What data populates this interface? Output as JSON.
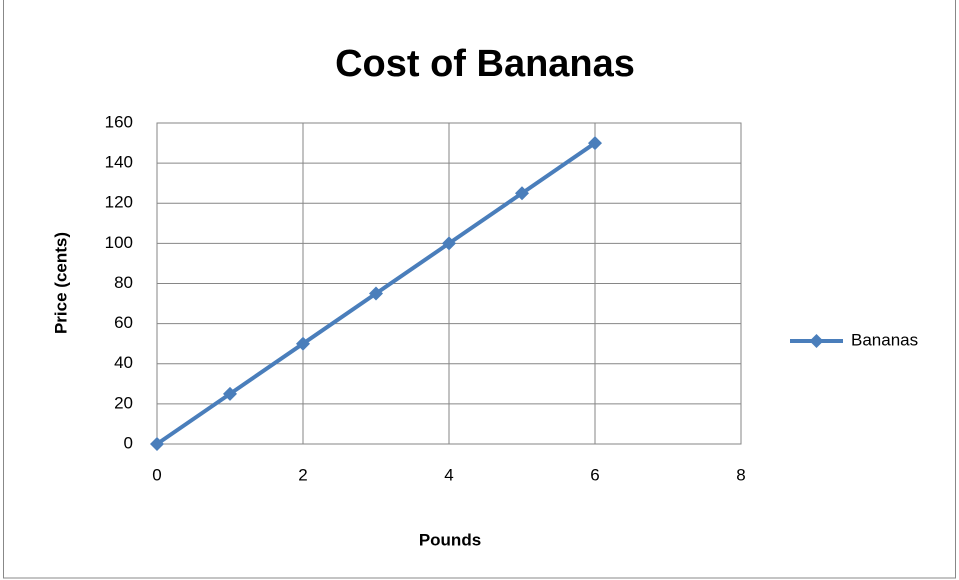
{
  "chart_data": {
    "type": "line",
    "title": "Cost of Bananas",
    "x_label": "Pounds",
    "y_label": "Price (cents)",
    "x": [
      0,
      1,
      2,
      3,
      4,
      5,
      6
    ],
    "series": [
      {
        "name": "Bananas",
        "color": "#4a7ebb",
        "values": [
          0,
          25,
          50,
          75,
          100,
          125,
          150
        ]
      }
    ],
    "xlim": [
      0,
      8
    ],
    "xticks": [
      0,
      2,
      4,
      6,
      8
    ],
    "ylim": [
      0,
      160
    ],
    "yticks": [
      0,
      20,
      40,
      60,
      80,
      100,
      120,
      140,
      160
    ],
    "grid": true,
    "legend": "right"
  }
}
